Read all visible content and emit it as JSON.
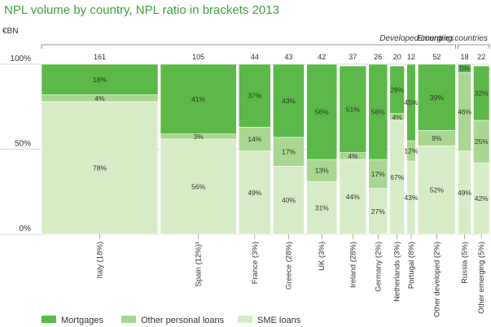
{
  "chart_data": {
    "type": "bar",
    "title": "NPL volume by country, NPL ratio in brackets 2013",
    "unit_label": "€BN",
    "groups": [
      {
        "label": "Developed countries",
        "from": 0,
        "to": 9
      },
      {
        "label": "Emerging countries",
        "from": 10,
        "to": 11
      }
    ],
    "yticks": [
      "0%",
      "50%",
      "100%"
    ],
    "ylim": [
      0,
      100
    ],
    "categories": [
      "Italy (18%)",
      "Spain (12%)¹",
      "France (3%)",
      "Greece (28%)",
      "UK (3%)",
      "Ireland (28%)",
      "Germany (2%)",
      "Netherlands (3%)",
      "Portugal (8%)",
      "Other developed (2%)",
      "Russia (5%)",
      "Other emerging (5%)"
    ],
    "totals": [
      161,
      105,
      44,
      43,
      42,
      37,
      26,
      20,
      12,
      52,
      18,
      22
    ],
    "series": [
      {
        "name": "SME loans",
        "color": "#d6ecc6",
        "values": [
          78,
          56,
          49,
          40,
          31,
          44,
          27,
          67,
          43,
          52,
          49,
          42
        ],
        "labels": [
          "78%",
          "56%",
          "49%",
          "40%",
          "31%",
          "44%",
          "27%",
          "67%",
          "43%",
          "52%",
          "49%",
          "42%"
        ]
      },
      {
        "name": "Other personal loans",
        "color": "#a9d690",
        "values": [
          4,
          3,
          14,
          17,
          13,
          4,
          17,
          4,
          12,
          9,
          46,
          25
        ],
        "labels": [
          "4%",
          "3%",
          "14%",
          "17%",
          "13%",
          "4%",
          "17%",
          "4%",
          "12%",
          "9%",
          "46%",
          "25%"
        ]
      },
      {
        "name": "Mortgages",
        "color": "#5cb848",
        "values": [
          18,
          41,
          37,
          43,
          56,
          51,
          56,
          28,
          45,
          39,
          5,
          32
        ],
        "labels": [
          "18%",
          "41%",
          "37%",
          "43%",
          "56%",
          "51%",
          "56%",
          "28%",
          "45%",
          "39%",
          "5%",
          "32%"
        ]
      }
    ],
    "legend": {
      "position": "bottom",
      "items": [
        {
          "name": "Mortgages",
          "color": "#5cb848"
        },
        {
          "name": "Other personal loans",
          "color": "#a9d690"
        },
        {
          "name": "SME loans",
          "color": "#d6ecc6"
        }
      ]
    }
  }
}
